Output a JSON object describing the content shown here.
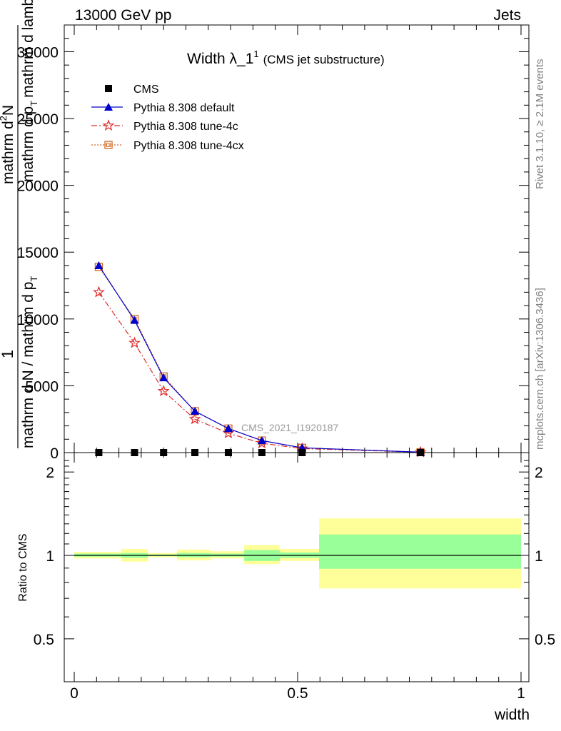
{
  "header": {
    "left": "13000 GeV pp",
    "right": "Jets"
  },
  "side_labels": {
    "top": "Rivet 3.1.10, ≥ 2.1M events",
    "bottom": "mcplots.cern.ch [arXiv:1306.3436]"
  },
  "chart_data": [
    {
      "type": "line",
      "title_main": "Width λ_1",
      "title_sup": "1",
      "title_sub": "(CMS jet substructure)",
      "watermark": "CMS_2021_I1920187",
      "ylabel_parts": [
        "1",
        "mathrm d N / mathrm d p",
        "T",
        "mathrm d",
        "2",
        "N",
        "mathrm d p",
        "T",
        "mathrm d lambda"
      ],
      "xlim": [
        0,
        1
      ],
      "ylim": [
        0,
        32000
      ],
      "y_ticks": [
        0,
        5000,
        10000,
        15000,
        20000,
        25000,
        30000
      ],
      "y_tick_labels": [
        "0",
        "5000",
        "10000",
        "15000",
        "20000",
        "25000",
        "30000"
      ],
      "x_tick_labels_visible": false,
      "legend_position": "top-left",
      "series": [
        {
          "name": "CMS",
          "color": "#000000",
          "marker": "square",
          "x": [
            0.055,
            0.135,
            0.2,
            0.27,
            0.345,
            0.42,
            0.51,
            0.775
          ],
          "y": [
            0,
            0,
            0,
            0,
            0,
            0,
            0,
            0
          ]
        },
        {
          "name": "Pythia 8.308 default",
          "color": "#0000cc",
          "marker": "triangle",
          "line": "solid",
          "x": [
            0.055,
            0.135,
            0.2,
            0.27,
            0.345,
            0.42,
            0.51,
            0.775
          ],
          "y": [
            14000,
            9900,
            5600,
            3100,
            1800,
            900,
            360,
            30
          ]
        },
        {
          "name": "Pythia 8.308 tune-4c",
          "color": "#e03030",
          "marker": "star",
          "line": "dashdot",
          "x": [
            0.055,
            0.135,
            0.2,
            0.27,
            0.345,
            0.42,
            0.51,
            0.775
          ],
          "y": [
            12000,
            8200,
            4600,
            2500,
            1450,
            700,
            300,
            25
          ]
        },
        {
          "name": "Pythia 8.308 tune-4cx",
          "color": "#cc6622",
          "marker": "open-square",
          "line": "dotted",
          "x": [
            0.055,
            0.135,
            0.2,
            0.27,
            0.345,
            0.42,
            0.51,
            0.775
          ],
          "y": [
            13900,
            10000,
            5700,
            3100,
            1800,
            900,
            360,
            30
          ]
        }
      ]
    },
    {
      "type": "area",
      "ylabel": "Ratio to CMS",
      "xlabel": "width",
      "xlim": [
        0,
        1
      ],
      "ylim": [
        0.35,
        2.35
      ],
      "log_y": true,
      "x_ticks": [
        0,
        0.5,
        1
      ],
      "x_tick_labels": [
        "0",
        "0.5",
        "1"
      ],
      "y_ticks": [
        0.5,
        1,
        2
      ],
      "y_tick_labels": [
        "0.5",
        "1",
        "2"
      ],
      "reference_line": 1,
      "band_colors": {
        "outer": "#ffff99",
        "inner": "#99ff99",
        "ref": "#000000"
      },
      "bands": [
        {
          "x0": 0.0,
          "x1": 0.105,
          "outer": [
            0.975,
            1.03
          ],
          "inner": [
            0.99,
            1.015
          ]
        },
        {
          "x0": 0.105,
          "x1": 0.165,
          "outer": [
            0.95,
            1.055
          ],
          "inner": [
            0.98,
            1.02
          ]
        },
        {
          "x0": 0.165,
          "x1": 0.23,
          "outer": [
            0.985,
            1.02
          ],
          "inner": [
            0.993,
            1.008
          ]
        },
        {
          "x0": 0.23,
          "x1": 0.305,
          "outer": [
            0.96,
            1.05
          ],
          "inner": [
            0.985,
            1.02
          ]
        },
        {
          "x0": 0.305,
          "x1": 0.38,
          "outer": [
            0.975,
            1.035
          ],
          "inner": [
            0.99,
            1.015
          ]
        },
        {
          "x0": 0.38,
          "x1": 0.46,
          "outer": [
            0.93,
            1.09
          ],
          "inner": [
            0.955,
            1.045
          ]
        },
        {
          "x0": 0.46,
          "x1": 0.548,
          "outer": [
            0.955,
            1.055
          ],
          "inner": [
            0.98,
            1.025
          ]
        },
        {
          "x0": 0.548,
          "x1": 1.0,
          "outer": [
            0.76,
            1.36
          ],
          "inner": [
            0.895,
            1.19
          ]
        }
      ]
    }
  ]
}
